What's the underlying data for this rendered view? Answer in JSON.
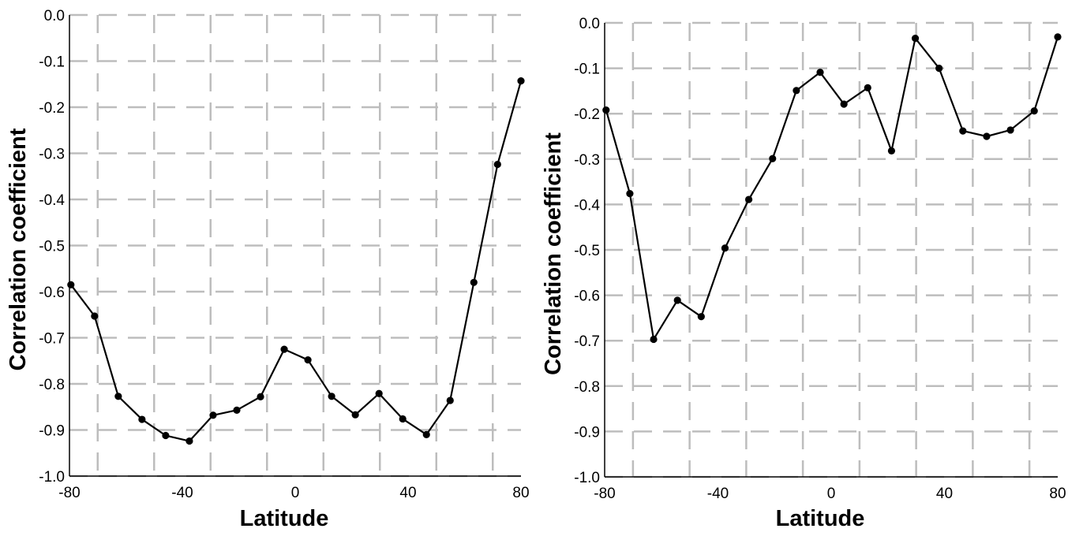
{
  "chart_data": [
    {
      "type": "line",
      "xlabel": "Latitude",
      "ylabel": "Correlation coefficient",
      "xlim": [
        -80,
        80
      ],
      "ylim": [
        -1.0,
        0.0
      ],
      "xticks": [
        "-80",
        "-40",
        "0",
        "40",
        "80"
      ],
      "yticks": [
        "0.0",
        "-0.1",
        "-0.2",
        "-0.3",
        "-0.4",
        "-0.5",
        "-0.6",
        "-0.7",
        "-0.8",
        "-0.9",
        "-1.0"
      ],
      "grid": true,
      "x": [
        -79.5,
        -71.1,
        -62.7,
        -54.3,
        -45.9,
        -37.5,
        -29.1,
        -20.7,
        -12.3,
        -3.9,
        4.5,
        12.9,
        21.3,
        29.7,
        38.1,
        46.5,
        54.9,
        63.3,
        71.7,
        80
      ],
      "series": [
        {
          "values": [
            -0.585,
            -0.653,
            -0.827,
            -0.877,
            -0.912,
            -0.924,
            -0.868,
            -0.857,
            -0.828,
            -0.725,
            -0.748,
            -0.827,
            -0.867,
            -0.821,
            -0.876,
            -0.91,
            -0.836,
            -0.58,
            -0.324,
            -0.143
          ]
        }
      ]
    },
    {
      "type": "line",
      "xlabel": "Latitude",
      "ylabel": "Correlation coefficient",
      "xlim": [
        -80,
        80
      ],
      "ylim": [
        -1.0,
        0.0
      ],
      "xticks": [
        "-80",
        "-40",
        "0",
        "40",
        "80"
      ],
      "yticks": [
        "0.0",
        "-0.1",
        "-0.2",
        "-0.3",
        "-0.4",
        "-0.5",
        "-0.6",
        "-0.7",
        "-0.8",
        "-0.9",
        "-1.0"
      ],
      "grid": true,
      "x": [
        -79.5,
        -71.1,
        -62.7,
        -54.3,
        -45.9,
        -37.5,
        -29.1,
        -20.7,
        -12.3,
        -3.9,
        4.5,
        12.9,
        21.3,
        29.7,
        38.1,
        46.5,
        54.9,
        63.3,
        71.7,
        80
      ],
      "series": [
        {
          "values": [
            -0.192,
            -0.376,
            -0.697,
            -0.611,
            -0.647,
            -0.496,
            -0.389,
            -0.299,
            -0.149,
            -0.109,
            -0.179,
            -0.143,
            -0.282,
            -0.034,
            -0.1,
            -0.238,
            -0.25,
            -0.236,
            -0.194,
            -0.031
          ]
        }
      ]
    }
  ]
}
